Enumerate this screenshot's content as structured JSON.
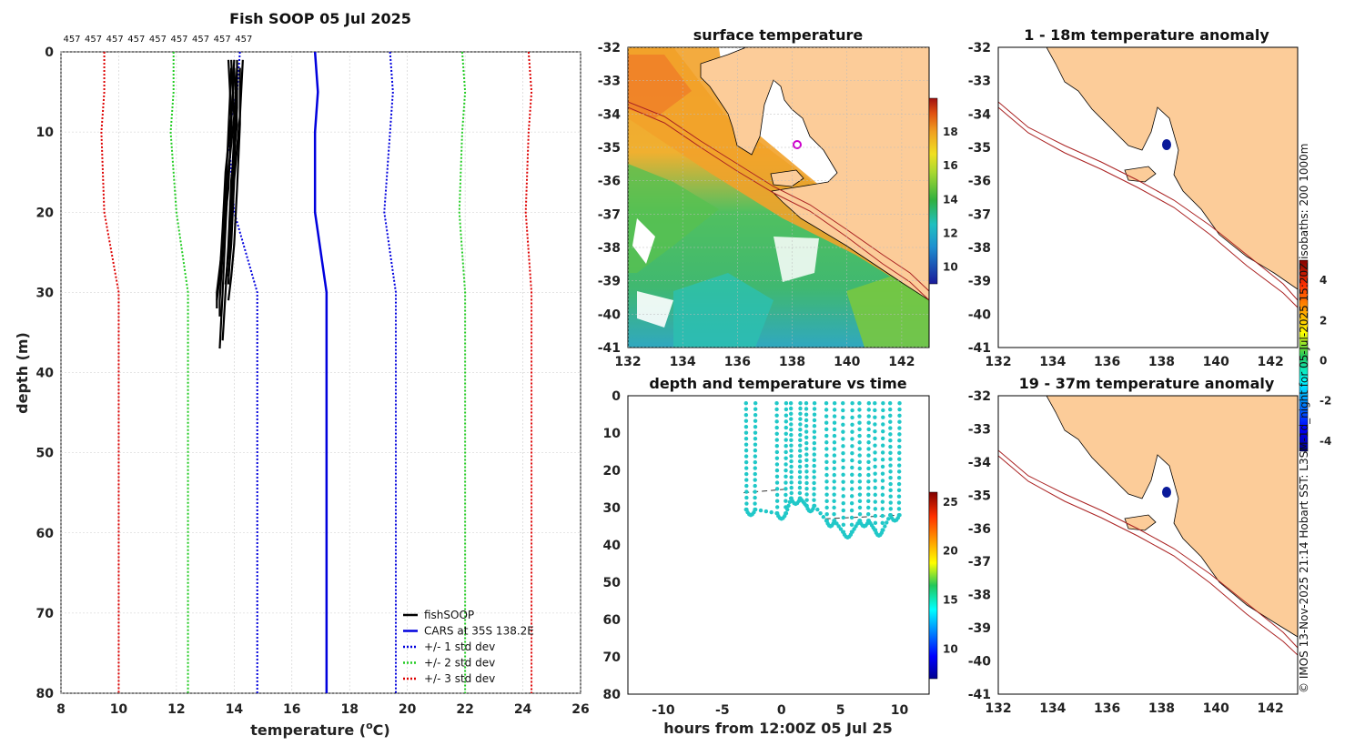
{
  "colors": {
    "fishsoop": "#000000",
    "cars": "#0000dd",
    "std1": "#0000dd",
    "std2": "#22cc22",
    "std3": "#dd0000",
    "land": "#fccc99",
    "isobath": "#aa2222",
    "scatter": "#20c8c8"
  },
  "chart_data": [
    {
      "name": "profile",
      "type": "line",
      "title": "Fish SOOP 05 Jul 2025",
      "xlabel": "temperature (°C)",
      "xlabel_base": "temperature (",
      "xlabel_sup": "o",
      "xlabel_end": "C)",
      "ylabel": "depth (m)",
      "xlim": [
        8,
        26
      ],
      "ylim": [
        0,
        80
      ],
      "xticks": [
        8,
        10,
        12,
        14,
        16,
        18,
        20,
        22,
        24,
        26
      ],
      "yticks": [
        0,
        10,
        20,
        30,
        40,
        50,
        60,
        70,
        80
      ],
      "top_labels": [
        "457",
        "457",
        "457",
        "457",
        "457",
        "457",
        "457",
        "457",
        "457"
      ],
      "legend": [
        "fishSOOP",
        "CARS at 35S 138.2E",
        "+/- 1 std dev",
        "+/- 2 std dev",
        "+/- 3 std dev"
      ],
      "series": [
        {
          "name": "CARS at 35S 138.2E",
          "x": [
            16.8,
            16.9,
            16.8,
            16.8,
            17.2,
            17.2
          ],
          "y": [
            0,
            5,
            10,
            20,
            30,
            80
          ]
        },
        {
          "name": "-1 std",
          "x": [
            14.2,
            14.1,
            13.8,
            14.0,
            14.8,
            14.8
          ],
          "y": [
            0,
            5,
            10,
            20,
            30,
            80
          ]
        },
        {
          "name": "+1 std",
          "x": [
            19.4,
            19.5,
            19.4,
            19.2,
            19.6,
            19.6
          ],
          "y": [
            0,
            5,
            10,
            20,
            30,
            80
          ]
        },
        {
          "name": "-2 std",
          "x": [
            11.9,
            11.9,
            11.8,
            12.0,
            12.4,
            12.4
          ],
          "y": [
            0,
            5,
            10,
            20,
            30,
            80
          ]
        },
        {
          "name": "+2 std",
          "x": [
            21.9,
            22.0,
            21.9,
            21.8,
            22.0,
            22.0
          ],
          "y": [
            0,
            5,
            10,
            20,
            30,
            80
          ]
        },
        {
          "name": "-3 std",
          "x": [
            9.5,
            9.5,
            9.4,
            9.5,
            10.0,
            10.0
          ],
          "y": [
            0,
            5,
            10,
            20,
            30,
            80
          ]
        },
        {
          "name": "+3 std",
          "x": [
            24.2,
            24.3,
            24.2,
            24.1,
            24.3,
            24.3
          ],
          "y": [
            0,
            5,
            10,
            20,
            30,
            80
          ]
        }
      ],
      "fishsoop_profiles": [
        {
          "x": [
            13.8,
            13.9,
            13.7,
            13.6,
            13.5,
            13.4
          ],
          "y": [
            1,
            8,
            15,
            22,
            28,
            31
          ]
        },
        {
          "x": [
            13.9,
            14.0,
            13.8,
            13.7,
            13.6,
            13.5
          ],
          "y": [
            1,
            8,
            15,
            22,
            30,
            37
          ]
        },
        {
          "x": [
            14.0,
            14.1,
            13.9,
            13.8,
            13.7,
            13.6
          ],
          "y": [
            2,
            9,
            16,
            24,
            30,
            36
          ]
        },
        {
          "x": [
            14.1,
            14.1,
            14.0,
            13.9,
            13.8
          ],
          "y": [
            1,
            7,
            14,
            22,
            29
          ]
        },
        {
          "x": [
            14.2,
            14.2,
            14.1,
            14.0,
            13.9,
            13.8
          ],
          "y": [
            2,
            9,
            17,
            24,
            28,
            31
          ]
        },
        {
          "x": [
            14.3,
            14.2,
            14.0,
            13.9,
            13.8
          ],
          "y": [
            1,
            8,
            16,
            24,
            28
          ]
        },
        {
          "x": [
            13.9,
            13.8,
            13.7,
            13.6,
            13.5,
            13.5
          ],
          "y": [
            2,
            10,
            18,
            25,
            31,
            33
          ]
        },
        {
          "x": [
            14.0,
            13.9,
            13.8,
            13.6,
            13.4,
            13.4
          ],
          "y": [
            1,
            9,
            17,
            24,
            30,
            32
          ]
        },
        {
          "x": [
            14.1,
            14.0,
            13.9,
            13.8,
            13.7
          ],
          "y": [
            2,
            10,
            18,
            25,
            29
          ]
        }
      ]
    },
    {
      "name": "surface",
      "type": "heatmap",
      "title": "surface temperature",
      "xlim": [
        132,
        143
      ],
      "ylim": [
        -41,
        -32
      ],
      "xticks": [
        132,
        134,
        136,
        138,
        140,
        142
      ],
      "yticks": [
        -32,
        -33,
        -34,
        -35,
        -36,
        -37,
        -38,
        -39,
        -40,
        -41
      ],
      "colorbar": {
        "range": [
          9,
          20
        ],
        "ticks": [
          10,
          12,
          14,
          16,
          18
        ]
      }
    },
    {
      "name": "timeseries",
      "type": "scatter",
      "title": "depth and temperature vs time",
      "xlabel": "hours from 12:00Z 05 Jul 25",
      "xlim": [
        -13,
        12.5
      ],
      "ylim": [
        0,
        80
      ],
      "xticks": [
        -10,
        -5,
        0,
        5,
        10
      ],
      "yticks": [
        0,
        10,
        20,
        30,
        40,
        50,
        60,
        70,
        80
      ],
      "casts": [
        {
          "t0": -3.0,
          "t1": -2.2,
          "bottom": 30.5
        },
        {
          "t0": -0.4,
          "t1": 0.4,
          "bottom": 31.5
        },
        {
          "t0": 0.8,
          "t1": 1.6,
          "bottom": 27.5
        },
        {
          "t0": 2.1,
          "t1": 2.8,
          "bottom": 29.5
        },
        {
          "t0": 3.8,
          "t1": 4.5,
          "bottom": 33.5
        },
        {
          "t0": 5.2,
          "t1": 6.0,
          "bottom": 36.5
        },
        {
          "t0": 6.6,
          "t1": 7.4,
          "bottom": 33.5
        },
        {
          "t0": 7.9,
          "t1": 8.6,
          "bottom": 36.0
        },
        {
          "t0": 9.2,
          "t1": 10.0,
          "bottom": 32.0
        }
      ],
      "dashed_depth": [
        26,
        25,
        33,
        32
      ],
      "colorbar": {
        "range": [
          7,
          26
        ],
        "ticks": [
          10,
          15,
          20,
          25
        ]
      }
    },
    {
      "name": "anom1",
      "type": "heatmap",
      "title": "1 - 18m temperature anomaly",
      "xlim": [
        132,
        143
      ],
      "ylim": [
        -41,
        -32
      ],
      "xticks": [
        132,
        134,
        136,
        138,
        140,
        142
      ],
      "yticks": [
        -32,
        -33,
        -34,
        -35,
        -36,
        -37,
        -38,
        -39,
        -40,
        -41
      ]
    },
    {
      "name": "anom2",
      "type": "heatmap",
      "title": "19 - 37m temperature anomaly",
      "xlim": [
        132,
        143
      ],
      "ylim": [
        -41,
        -32
      ],
      "xticks": [
        132,
        134,
        136,
        138,
        140,
        142
      ],
      "yticks": [
        -32,
        -33,
        -34,
        -35,
        -36,
        -37,
        -38,
        -39,
        -40,
        -41
      ],
      "colorbar": {
        "range": [
          -4.5,
          5
        ],
        "ticks": [
          4,
          2,
          0,
          -2,
          -4
        ],
        "tick_labels": [
          "4",
          "2",
          "0",
          "-2",
          "-4"
        ]
      }
    }
  ],
  "side_text": "© IMOS 13-Nov-2025 21:14 Hobart SST: L3SM-1d_night for 05-Jul-2025 15:20Z isobaths: 200  1000m"
}
